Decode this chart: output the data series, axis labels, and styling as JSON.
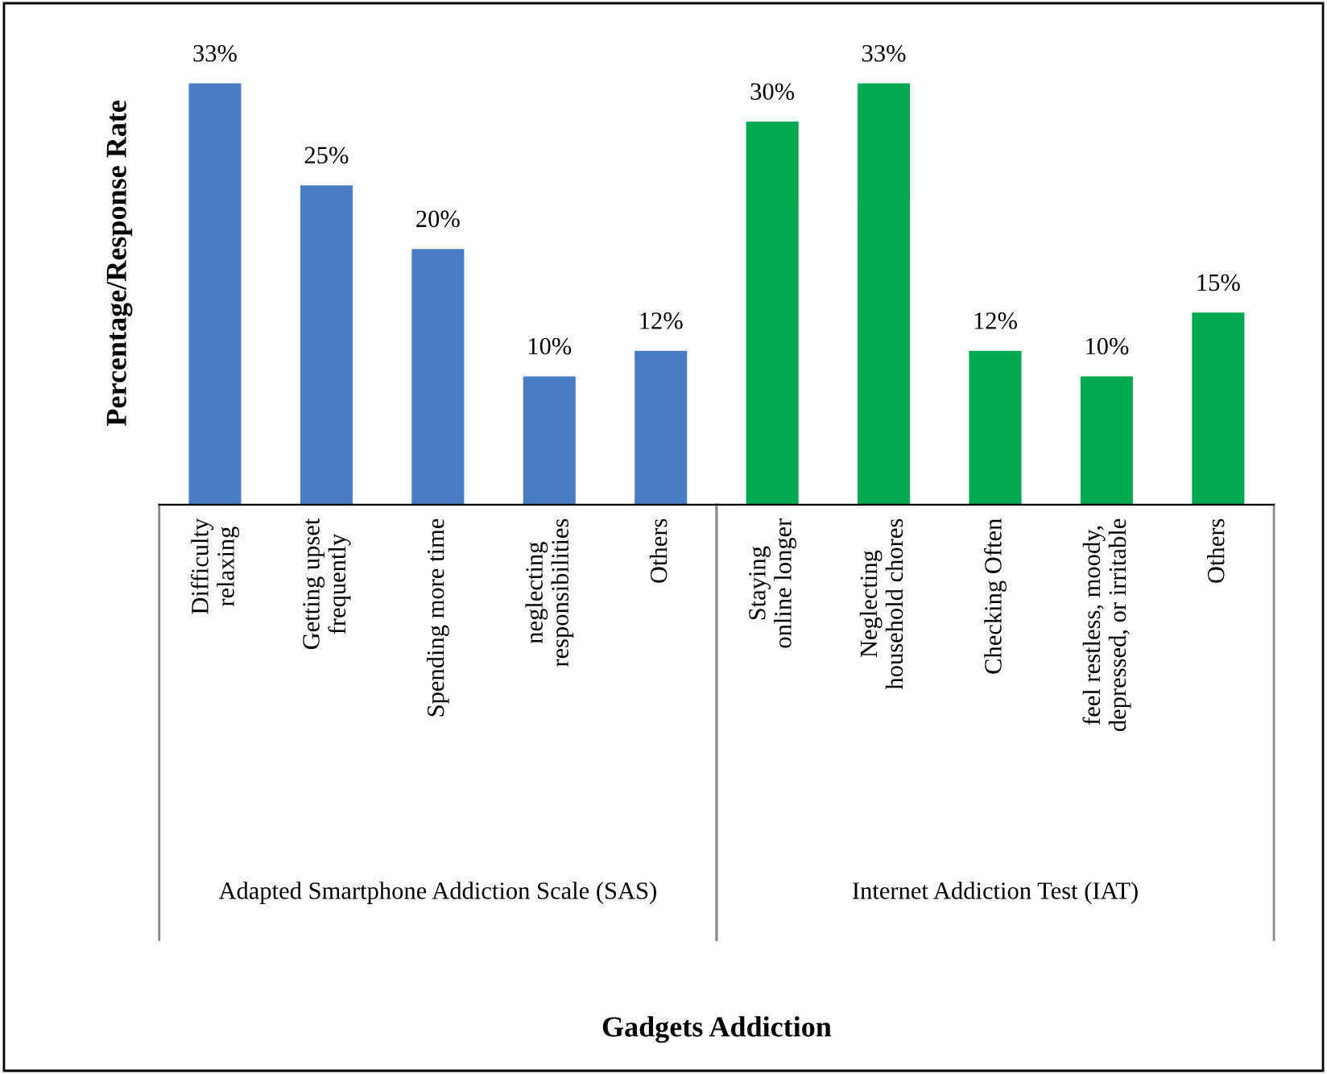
{
  "chart_data": {
    "type": "bar",
    "ylabel": "Percentage/Response Rate",
    "categories": [
      "Difficulty relaxing",
      "Getting upset frequently",
      "Spending more time",
      "neglecting responsibilities",
      "Others",
      "Staying online longer",
      "Neglecting household chores",
      "Checking Often",
      "feel restless, moody, depressed, or irritable",
      "Others"
    ],
    "series": [
      {
        "color": "#4a7ec4",
        "values": [
          33,
          25,
          20,
          10,
          12,
          null,
          null,
          null,
          null,
          null
        ],
        "value_labels": [
          "33%",
          "25%",
          "20%",
          "10%",
          "12%",
          null,
          null,
          null,
          null,
          null
        ]
      },
      {
        "color": "#00a84f",
        "values": [
          null,
          null,
          null,
          null,
          null,
          30,
          33,
          12,
          10,
          15
        ],
        "value_labels": [
          null,
          null,
          null,
          null,
          null,
          "30%",
          "33%",
          "12%",
          "10%",
          "15%"
        ]
      }
    ],
    "annotations": [
      "Adapted Smartphone Addiction Scale (SAS)",
      "Internet Addiction Test (IAT)",
      "Gadgets Addiction"
    ],
    "grid": false,
    "legend": false
  }
}
